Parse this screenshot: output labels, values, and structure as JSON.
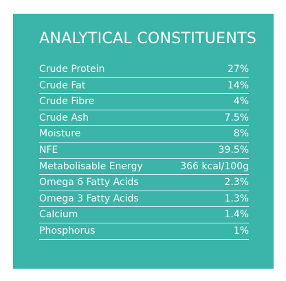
{
  "title": "ANALYTICAL CONSTITUENTS",
  "colors": {
    "panel_background": "#3bb4a9",
    "text": "#ffffff"
  },
  "constituents": [
    {
      "label": "Crude Protein",
      "value": "27%"
    },
    {
      "label": "Crude Fat",
      "value": "14%"
    },
    {
      "label": "Crude Fibre",
      "value": "4%"
    },
    {
      "label": "Crude Ash",
      "value": "7.5%"
    },
    {
      "label": "Moisture",
      "value": "8%"
    },
    {
      "label": "NFE",
      "value": "39.5%"
    },
    {
      "label": "Metabolisable Energy",
      "value": "366 kcal/100g"
    },
    {
      "label": "Omega 6 Fatty Acids",
      "value": "2.3%"
    },
    {
      "label": "Omega 3 Fatty Acids",
      "value": "1.3%"
    },
    {
      "label": "Calcium",
      "value": "1.4%"
    },
    {
      "label": "Phosphorus",
      "value": "1%"
    }
  ]
}
